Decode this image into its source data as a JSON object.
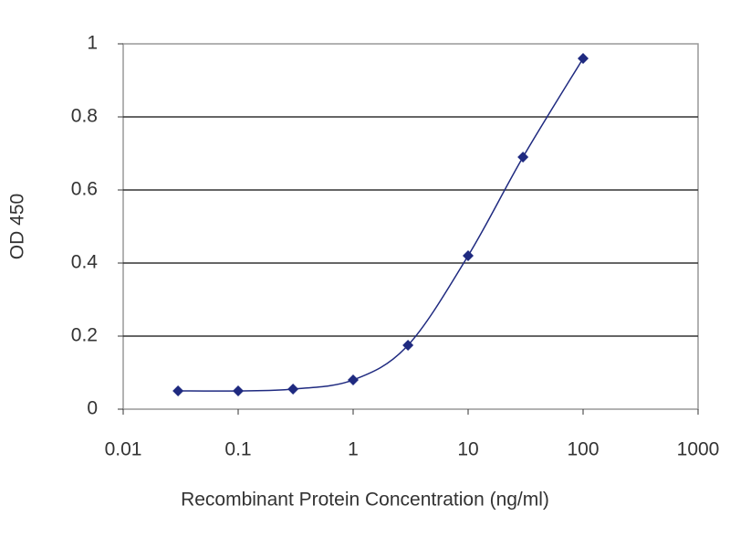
{
  "chart_data": {
    "type": "line",
    "x_label": "Recombinant Protein Concentration (ng/ml)",
    "y_label": "OD 450",
    "x": [
      0.03,
      0.1,
      0.3,
      1,
      3,
      10,
      30,
      100
    ],
    "values": [
      0.05,
      0.05,
      0.055,
      0.08,
      0.175,
      0.42,
      0.69,
      0.96
    ],
    "color": "#1f2a80",
    "x_log": true,
    "xlim": [
      0.01,
      1000
    ],
    "xticks": [
      0.01,
      0.1,
      1,
      10,
      100,
      1000
    ],
    "ylim": [
      0,
      1
    ],
    "yticks": [
      0,
      0.2,
      0.4,
      0.6,
      0.8,
      1
    ],
    "grid": true
  }
}
